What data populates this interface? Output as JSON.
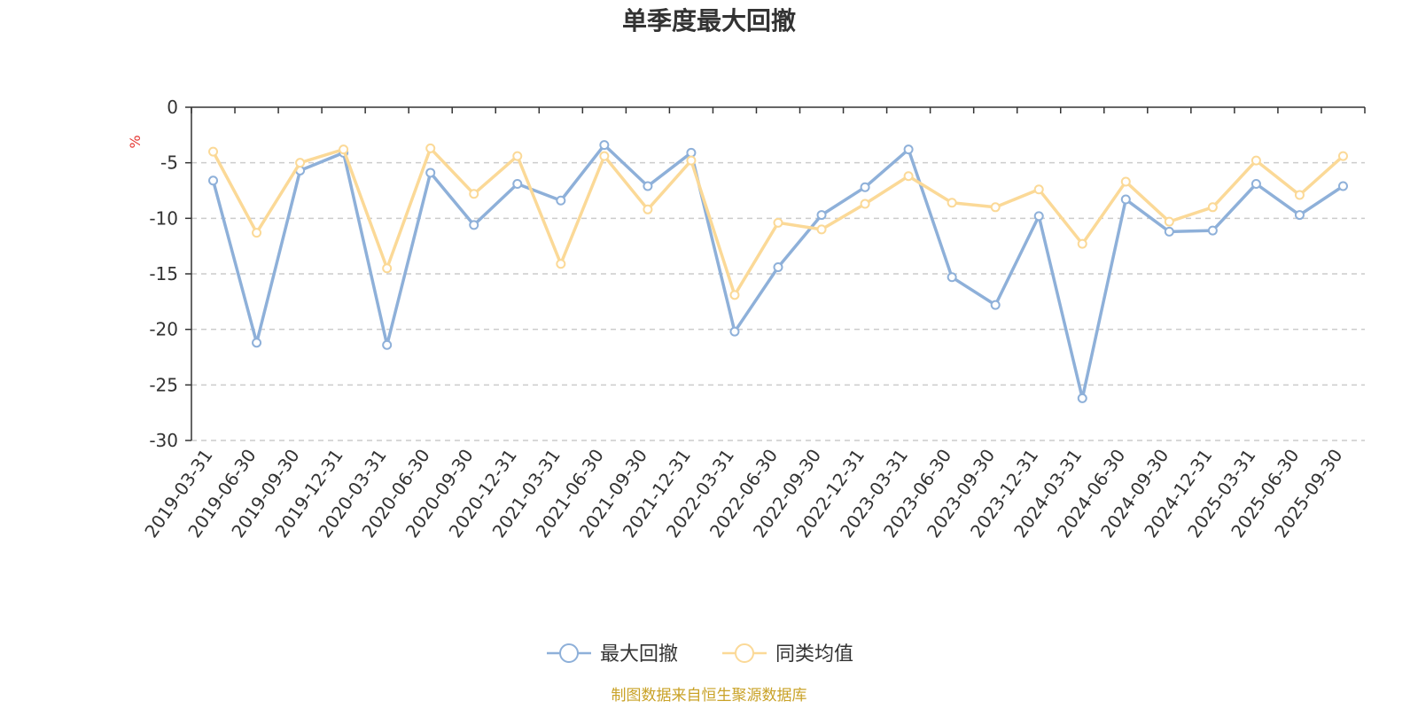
{
  "chart_data": {
    "type": "line",
    "title": "单季度最大回撤",
    "ylabel": "%",
    "ylim": [
      -30,
      0
    ],
    "yticks": [
      0,
      -5,
      -10,
      -15,
      -20,
      -25,
      -30
    ],
    "ytick_labels": [
      "0",
      "-5",
      "-10",
      "-15",
      "-20",
      "-25",
      "-30"
    ],
    "grid": true,
    "legend_position": "bottom",
    "categories": [
      "2019-03-31",
      "2019-06-30",
      "2019-09-30",
      "2019-12-31",
      "2020-03-31",
      "2020-06-30",
      "2020-09-30",
      "2020-12-31",
      "2021-03-31",
      "2021-06-30",
      "2021-09-30",
      "2021-12-31",
      "2022-03-31",
      "2022-06-30",
      "2022-09-30",
      "2022-12-31",
      "2023-03-31",
      "2023-06-30",
      "2023-09-30",
      "2023-12-31",
      "2024-03-31",
      "2024-06-30",
      "2024-09-30",
      "2024-12-31",
      "2025-03-31",
      "2025-06-30",
      "2025-09-30"
    ],
    "series": [
      {
        "name": "最大回撤",
        "color": "#8eb0d9",
        "values": [
          -6.6,
          -21.2,
          -5.7,
          -4.1,
          -21.4,
          -5.9,
          -10.6,
          -6.9,
          -8.4,
          -3.4,
          -7.1,
          -4.1,
          -20.2,
          -14.4,
          -9.7,
          -7.2,
          -3.8,
          -15.3,
          -17.8,
          -9.8,
          -26.2,
          -8.3,
          -11.2,
          -11.1,
          -6.9,
          -9.7,
          -7.1
        ]
      },
      {
        "name": "同类均值",
        "color": "#fbd997",
        "values": [
          -4.0,
          -11.3,
          -5.0,
          -3.8,
          -14.5,
          -3.7,
          -7.8,
          -4.4,
          -14.1,
          -4.4,
          -9.2,
          -4.8,
          -16.9,
          -10.4,
          -11.0,
          -8.7,
          -6.2,
          -8.6,
          -9.0,
          -7.4,
          -12.3,
          -6.7,
          -10.3,
          -9.0,
          -4.8,
          -7.9,
          -4.4
        ]
      }
    ]
  },
  "footer": {
    "source": "制图数据来自恒生聚源数据库"
  }
}
